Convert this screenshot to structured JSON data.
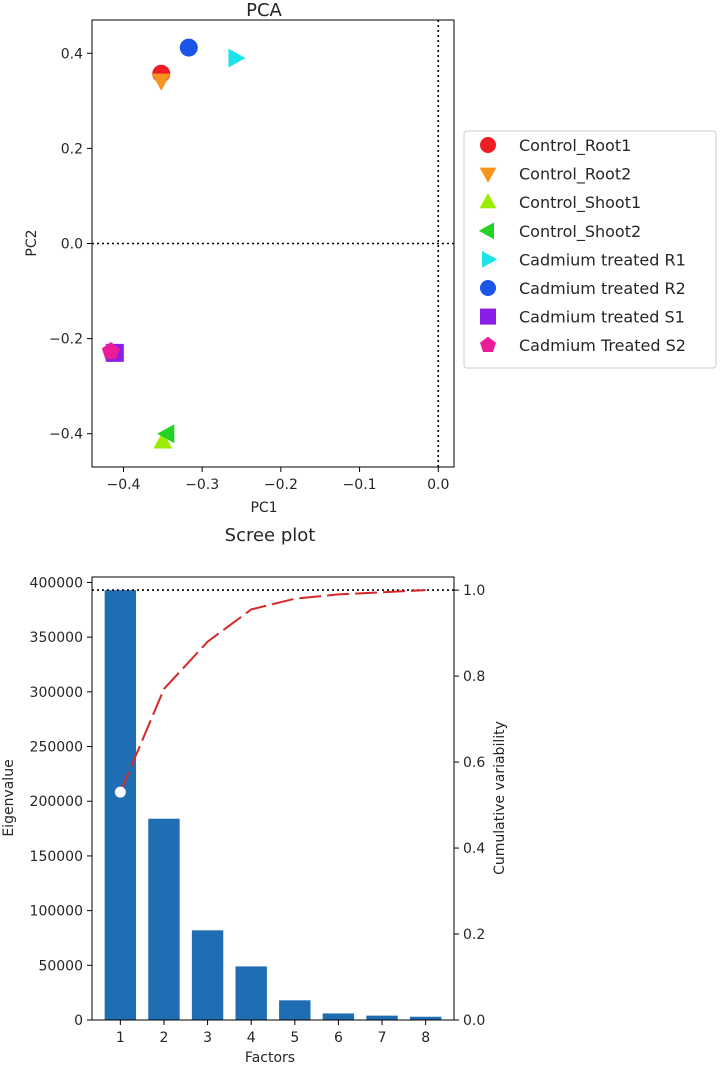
{
  "chart_data": [
    {
      "type": "scatter",
      "title": "PCA",
      "xlabel": "PC1",
      "ylabel": "PC2",
      "xlim": [
        -0.44,
        0.02
      ],
      "ylim": [
        -0.47,
        0.47
      ],
      "xticks": [
        "−0.4",
        "−0.3",
        "−0.2",
        "−0.1",
        "0.0"
      ],
      "xtick_values": [
        -0.4,
        -0.3,
        -0.2,
        -0.1,
        0.0
      ],
      "yticks": [
        "−0.4",
        "−0.2",
        "0.0",
        "0.2",
        "0.4"
      ],
      "ytick_values": [
        -0.4,
        -0.2,
        0.0,
        0.2,
        0.4
      ],
      "reference_lines": {
        "x": 0.0,
        "y": 0.0,
        "style": "dotted"
      },
      "legend_position": "right, outside plot",
      "series": [
        {
          "name": "Control_Root1",
          "marker": "circle",
          "color": "#ee1c25",
          "x": -0.352,
          "y": 0.357
        },
        {
          "name": "Control_Root2",
          "marker": "triangle-down",
          "color": "#f7941d",
          "x": -0.352,
          "y": 0.343
        },
        {
          "name": "Control_Shoot1",
          "marker": "triangle-up",
          "color": "#9aed00",
          "x": -0.35,
          "y": -0.417
        },
        {
          "name": "Control_Shoot2",
          "marker": "triangle-left",
          "color": "#22d324",
          "x": -0.344,
          "y": -0.4
        },
        {
          "name": "Cadmium treated R1",
          "marker": "triangle-right",
          "color": "#1ce3ea",
          "x": -0.258,
          "y": 0.39
        },
        {
          "name": "Cadmium treated R2",
          "marker": "circle",
          "color": "#1b55e8",
          "x": -0.317,
          "y": 0.412
        },
        {
          "name": "Cadmium treated S1",
          "marker": "square",
          "color": "#8a1ee6",
          "x": -0.411,
          "y": -0.23
        },
        {
          "name": "Cadmium Treated S2",
          "marker": "pentagon",
          "color": "#ea1c97",
          "x": -0.416,
          "y": -0.227
        }
      ]
    },
    {
      "type": "bar",
      "title": "Scree plot",
      "xlabel": "Factors",
      "ylabel": "Eigenvalue",
      "y2label": "Cumulative variability",
      "categories": [
        "1",
        "2",
        "3",
        "4",
        "5",
        "6",
        "7",
        "8"
      ],
      "values": [
        393000,
        184000,
        82000,
        49000,
        18000,
        6000,
        4000,
        3000
      ],
      "bar_color": "#1f6db3",
      "ylim": [
        0,
        405000
      ],
      "yticks": [
        "0",
        "50000",
        "100000",
        "150000",
        "200000",
        "250000",
        "300000",
        "350000",
        "400000"
      ],
      "ytick_values": [
        0,
        50000,
        100000,
        150000,
        200000,
        250000,
        300000,
        350000,
        400000
      ],
      "y2lim": [
        0,
        1.0305
      ],
      "y2ticks": [
        "0.0",
        "0.2",
        "0.4",
        "0.6",
        "0.8",
        "1.0"
      ],
      "y2tick_values": [
        0.0,
        0.2,
        0.4,
        0.6,
        0.8,
        1.0
      ],
      "cumulative": {
        "x": [
          1,
          2,
          3,
          4,
          5,
          6,
          7,
          8
        ],
        "values": [
          0.53,
          0.77,
          0.88,
          0.955,
          0.98,
          0.99,
          0.995,
          1.0
        ],
        "color": "#d62728",
        "style": "dashed"
      },
      "threshold_line": {
        "y2": 1.0,
        "style": "dotted"
      }
    }
  ]
}
